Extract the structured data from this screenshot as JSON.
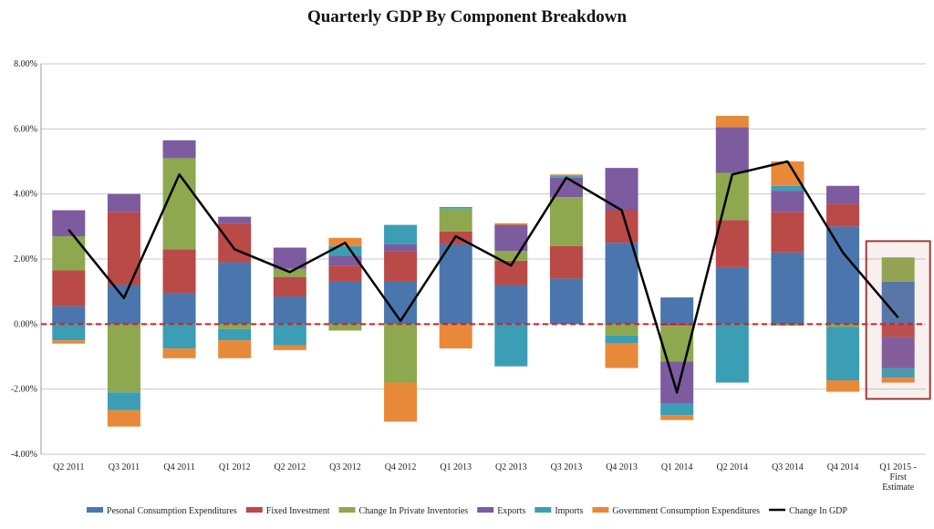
{
  "chart_data": {
    "type": "bar",
    "title": "Quarterly GDP By Component Breakdown",
    "xlabel": "",
    "ylabel": "",
    "ylim": [
      -4,
      8
    ],
    "y_ticks": [
      "-4.00%",
      "-2.00%",
      "0.00%",
      "2.00%",
      "4.00%",
      "6.00%",
      "8.00%"
    ],
    "y_tick_values": [
      -4,
      -2,
      0,
      2,
      4,
      6,
      8
    ],
    "categories": [
      "Q2 2011",
      "Q3 2011",
      "Q4 2011",
      "Q1 2012",
      "Q2 2012",
      "Q3 2012",
      "Q4 2012",
      "Q1 2013",
      "Q2 2013",
      "Q3 2013",
      "Q4 2013",
      "Q1 2014",
      "Q2 2014",
      "Q3 2014",
      "Q4 2014",
      "Q1 2015 - First Estimate"
    ],
    "category_lines": [
      [
        "Q2 2011"
      ],
      [
        "Q3 2011"
      ],
      [
        "Q4 2011"
      ],
      [
        "Q1 2012"
      ],
      [
        "Q2 2012"
      ],
      [
        "Q3 2012"
      ],
      [
        "Q4 2012"
      ],
      [
        "Q1 2013"
      ],
      [
        "Q2 2013"
      ],
      [
        "Q3 2013"
      ],
      [
        "Q4 2013"
      ],
      [
        "Q1 2014"
      ],
      [
        "Q2 2014"
      ],
      [
        "Q3 2014"
      ],
      [
        "Q4 2014"
      ],
      [
        "Q1 2015 -",
        "First",
        "Estimate"
      ]
    ],
    "stacked": true,
    "series": [
      {
        "name": "Pesonal Consumption Expenditures",
        "color": "#4a76ad",
        "values": [
          0.55,
          1.2,
          0.95,
          1.9,
          0.85,
          1.3,
          1.3,
          2.45,
          1.2,
          1.4,
          2.5,
          0.82,
          1.75,
          2.2,
          3.0,
          1.3
        ]
      },
      {
        "name": "Fixed Investment",
        "color": "#b94a48",
        "values": [
          1.1,
          2.25,
          1.35,
          1.2,
          0.6,
          0.5,
          0.95,
          0.4,
          0.75,
          1.0,
          1.0,
          -0.05,
          1.45,
          1.25,
          0.7,
          -0.4
        ]
      },
      {
        "name": "Change In Private Inventories",
        "color": "#8ea84f",
        "values": [
          1.05,
          -2.1,
          2.8,
          -0.15,
          0.25,
          -0.2,
          -1.8,
          0.7,
          0.3,
          1.5,
          -0.35,
          -1.1,
          1.45,
          -0.05,
          -0.08,
          0.75
        ]
      },
      {
        "name": "Exports",
        "color": "#7c5b9f",
        "values": [
          0.8,
          0.55,
          0.55,
          0.2,
          0.65,
          0.3,
          0.2,
          0.0,
          0.8,
          0.6,
          1.3,
          -1.3,
          1.4,
          0.65,
          0.55,
          -0.95
        ]
      },
      {
        "name": "Imports",
        "color": "#3c9eb5",
        "values": [
          -0.5,
          -0.55,
          -0.75,
          -0.35,
          -0.65,
          0.3,
          0.6,
          0.05,
          -1.3,
          0.05,
          -0.25,
          -0.35,
          -1.8,
          0.15,
          -1.65,
          -0.3
        ]
      },
      {
        "name": "Government Consumption Expenditures",
        "color": "#e8893a",
        "values": [
          -0.1,
          -0.5,
          -0.3,
          -0.55,
          -0.15,
          0.25,
          -1.2,
          -0.75,
          0.05,
          0.05,
          -0.75,
          -0.15,
          0.35,
          0.75,
          -0.35,
          -0.15
        ]
      }
    ],
    "line": {
      "name": "Change In GDP",
      "color": "#000000",
      "values": [
        2.9,
        0.8,
        4.6,
        2.3,
        1.6,
        2.5,
        0.1,
        2.7,
        1.8,
        4.5,
        3.5,
        -2.1,
        4.6,
        5.0,
        2.2,
        0.2
      ]
    },
    "zero_line": {
      "color": "#cc2222",
      "style": "dashed"
    },
    "highlight": {
      "category": "Q1 2015 - First Estimate",
      "color": "#9e3b3b"
    },
    "grid": true,
    "legend_position": "bottom"
  }
}
